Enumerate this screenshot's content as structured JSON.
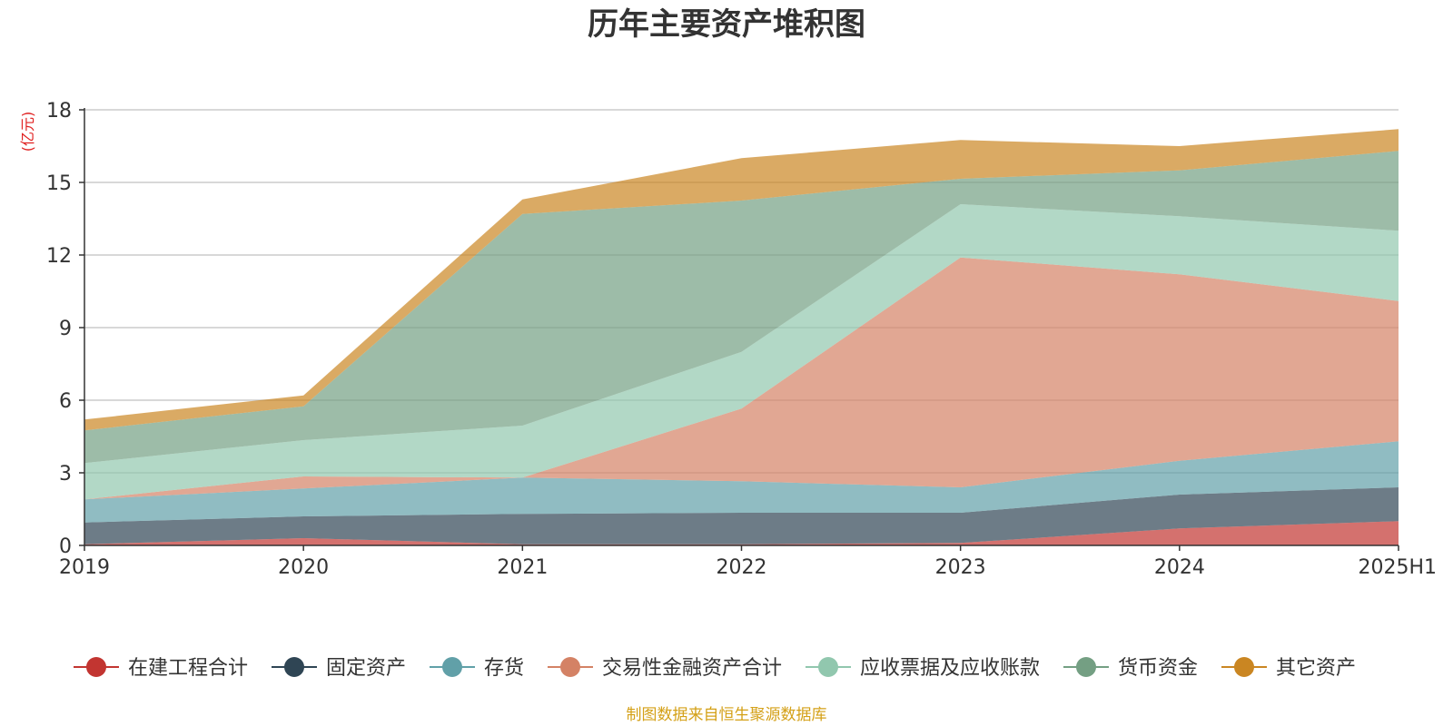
{
  "chart_data": {
    "type": "area",
    "stacked": true,
    "title": "历年主要资产堆积图",
    "unit_label": "(亿元)",
    "categories": [
      "2019",
      "2020",
      "2021",
      "2022",
      "2023",
      "2024",
      "2025H1"
    ],
    "ylim": [
      0,
      18
    ],
    "yticks": [
      0,
      3,
      6,
      9,
      12,
      15,
      18
    ],
    "grid": true,
    "legend_position": "bottom",
    "series": [
      {
        "name": "在建工程合计",
        "color": "#c23531",
        "values": [
          0.05,
          0.3,
          0.05,
          0.05,
          0.1,
          0.7,
          1.0
        ]
      },
      {
        "name": "固定资产",
        "color": "#2f4554",
        "values": [
          0.9,
          0.9,
          1.25,
          1.3,
          1.25,
          1.4,
          1.4
        ]
      },
      {
        "name": "存货",
        "color": "#61a0a8",
        "values": [
          0.95,
          1.15,
          1.5,
          1.3,
          1.05,
          1.4,
          1.9
        ]
      },
      {
        "name": "交易性金融资产合计",
        "color": "#d48265",
        "values": [
          0.0,
          0.5,
          0.0,
          3.0,
          9.5,
          7.7,
          5.8
        ]
      },
      {
        "name": "应收票据及应收账款",
        "color": "#91c7ae",
        "values": [
          1.5,
          1.5,
          2.15,
          2.35,
          2.2,
          2.4,
          2.9
        ]
      },
      {
        "name": "货币资金",
        "color": "#749f83",
        "values": [
          1.35,
          1.4,
          8.75,
          6.25,
          1.05,
          1.9,
          3.3
        ]
      },
      {
        "name": "其它资产",
        "color": "#ca8622",
        "values": [
          0.45,
          0.45,
          0.6,
          1.75,
          1.6,
          1.0,
          0.9
        ]
      }
    ]
  },
  "footer": {
    "source": "制图数据来自恒生聚源数据库"
  }
}
